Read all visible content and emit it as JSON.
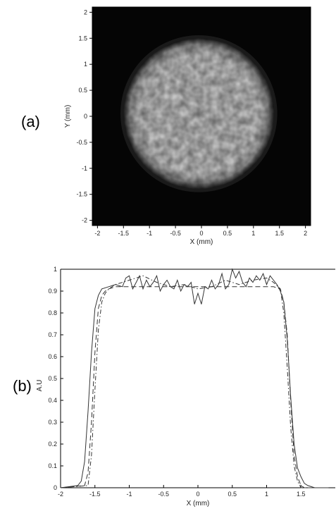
{
  "panel_labels": {
    "a": "(a)",
    "b": "(b)"
  },
  "chart_data": [
    {
      "panel": "(a)",
      "type": "heatmap",
      "description_visible": "bright circular spot on black background",
      "xlabel": "X (mm)",
      "ylabel": "Y (mm)",
      "xlim": [
        -2.1,
        2.1
      ],
      "ylim": [
        -2.1,
        2.1
      ],
      "xticks": [
        "-2",
        "-1.5",
        "-1",
        "-0.5",
        "0",
        "0.5",
        "1",
        "1.5",
        "2"
      ],
      "yticks": [
        "2",
        "1.5",
        "1",
        "0.5",
        "0",
        "-0.5",
        "-1",
        "-1.5",
        "-2"
      ],
      "spot": {
        "center_x": -0.05,
        "center_y": 0.05,
        "radius": 1.45
      },
      "colors": {
        "background": "#050505",
        "spot": "#d8d8d8"
      }
    },
    {
      "panel": "(b)",
      "type": "line",
      "xlabel": "X (mm)",
      "ylabel": "A.U",
      "xlim": [
        -2,
        2
      ],
      "ylim": [
        0,
        1
      ],
      "xticks": [
        "-2",
        "-1.5",
        "-1",
        "-0.5",
        "0",
        "0.5",
        "1",
        "1.5"
      ],
      "yticks": [
        "0",
        "0.1",
        "0.2",
        "0.3",
        "0.4",
        "0.5",
        "0.6",
        "0.7",
        "0.8",
        "0.9",
        "1"
      ],
      "grid": false,
      "series": [
        {
          "style": "solid",
          "x": [
            -2.0,
            -1.75,
            -1.7,
            -1.65,
            -1.6,
            -1.55,
            -1.5,
            -1.45,
            -1.4,
            -1.3,
            -1.2,
            -1.1,
            -1.05,
            -1.0,
            -0.95,
            -0.9,
            -0.85,
            -0.8,
            -0.75,
            -0.7,
            -0.65,
            -0.6,
            -0.55,
            -0.5,
            -0.45,
            -0.4,
            -0.35,
            -0.3,
            -0.25,
            -0.2,
            -0.15,
            -0.1,
            -0.05,
            0.0,
            0.05,
            0.1,
            0.15,
            0.2,
            0.25,
            0.3,
            0.35,
            0.4,
            0.45,
            0.5,
            0.55,
            0.6,
            0.65,
            0.7,
            0.75,
            0.8,
            0.85,
            0.9,
            0.95,
            1.0,
            1.05,
            1.1,
            1.15,
            1.2,
            1.25,
            1.3,
            1.35,
            1.4,
            1.45,
            1.5,
            1.55,
            1.6,
            1.7,
            1.9
          ],
          "y": [
            0.0,
            0.01,
            0.03,
            0.12,
            0.35,
            0.62,
            0.82,
            0.88,
            0.91,
            0.92,
            0.93,
            0.92,
            0.96,
            0.97,
            0.91,
            0.94,
            0.97,
            0.91,
            0.95,
            0.92,
            0.94,
            0.97,
            0.9,
            0.93,
            0.95,
            0.92,
            0.91,
            0.95,
            0.9,
            0.93,
            0.92,
            0.94,
            0.84,
            0.89,
            0.84,
            0.92,
            0.91,
            0.95,
            0.91,
            0.93,
            0.98,
            0.91,
            0.93,
            1.0,
            0.96,
            0.99,
            0.94,
            0.92,
            0.96,
            0.94,
            0.97,
            0.95,
            0.98,
            0.93,
            0.97,
            0.95,
            0.93,
            0.9,
            0.85,
            0.68,
            0.42,
            0.2,
            0.09,
            0.05,
            0.02,
            0.01,
            0.0,
            0.0
          ]
        },
        {
          "style": "dashed",
          "x": [
            -2.0,
            -1.65,
            -1.6,
            -1.55,
            -1.5,
            -1.45,
            -1.4,
            -1.35,
            -1.3,
            -1.2,
            -1.0,
            -0.5,
            0.0,
            0.5,
            1.0,
            1.1,
            1.2,
            1.25,
            1.3,
            1.35,
            1.4,
            1.45,
            1.5,
            1.55,
            1.9
          ],
          "y": [
            0.0,
            0.01,
            0.07,
            0.3,
            0.62,
            0.82,
            0.88,
            0.9,
            0.91,
            0.92,
            0.92,
            0.92,
            0.92,
            0.92,
            0.92,
            0.92,
            0.91,
            0.85,
            0.7,
            0.4,
            0.15,
            0.05,
            0.01,
            0.0,
            0.0
          ]
        },
        {
          "style": "dash-dot",
          "x": [
            -2.0,
            -1.6,
            -1.55,
            -1.5,
            -1.45,
            -1.4,
            -1.35,
            -1.3,
            -1.2,
            -1.0,
            -0.8,
            -0.6,
            -0.4,
            -0.2,
            0.0,
            0.2,
            0.4,
            0.6,
            0.8,
            1.0,
            1.1,
            1.2,
            1.25,
            1.3,
            1.35,
            1.4,
            1.45,
            1.5,
            1.9
          ],
          "y": [
            0.0,
            0.01,
            0.15,
            0.45,
            0.72,
            0.85,
            0.89,
            0.91,
            0.93,
            0.95,
            0.97,
            0.94,
            0.92,
            0.93,
            0.91,
            0.92,
            0.95,
            0.93,
            0.95,
            0.96,
            0.94,
            0.91,
            0.8,
            0.55,
            0.28,
            0.1,
            0.03,
            0.0,
            0.0
          ]
        }
      ]
    }
  ]
}
